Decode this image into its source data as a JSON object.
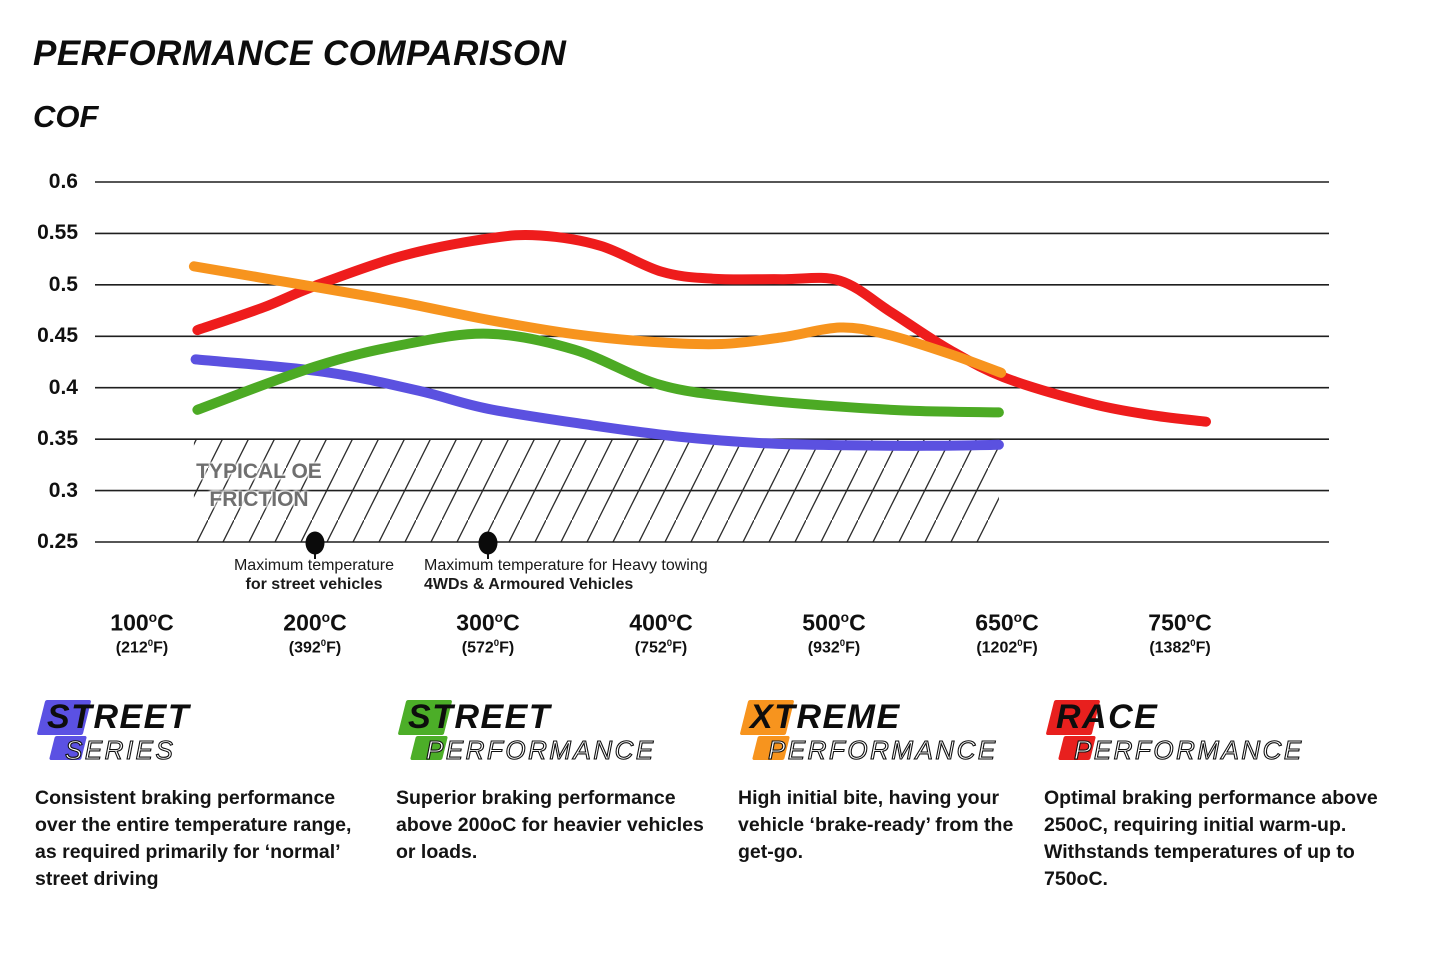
{
  "chart_data": {
    "type": "line",
    "title": "PERFORMANCE COMPARISON",
    "xlabel": "",
    "ylabel": "COF",
    "ylim": [
      0.25,
      0.6
    ],
    "yticks": [
      0.6,
      0.55,
      0.5,
      0.45,
      0.4,
      0.35,
      0.3,
      0.25
    ],
    "grid": true,
    "legend_position": "bottom",
    "x_categories": [
      {
        "c": "100",
        "f": "212"
      },
      {
        "c": "200",
        "f": "392"
      },
      {
        "c": "300",
        "f": "572"
      },
      {
        "c": "400",
        "f": "752"
      },
      {
        "c": "500",
        "f": "932"
      },
      {
        "c": "650",
        "f": "1202"
      },
      {
        "c": "750",
        "f": "1382"
      }
    ],
    "x_label": {
      "sup_c": "o",
      "unit_c": "C",
      "sup_f": "0",
      "unit_f": "F"
    },
    "series": [
      {
        "name": "Race Performance",
        "color": "#ee1c1c",
        "points": [
          [
            132,
            0.456
          ],
          [
            170,
            0.478
          ],
          [
            200,
            0.499
          ],
          [
            250,
            0.528
          ],
          [
            300,
            0.545
          ],
          [
            330,
            0.548
          ],
          [
            365,
            0.538
          ],
          [
            400,
            0.513
          ],
          [
            430,
            0.506
          ],
          [
            470,
            0.5055
          ],
          [
            505,
            0.504
          ],
          [
            550,
            0.473
          ],
          [
            600,
            0.437
          ],
          [
            650,
            0.409
          ],
          [
            700,
            0.384
          ],
          [
            735,
            0.373
          ],
          [
            765,
            0.367
          ]
        ]
      },
      {
        "name": "Xtreme Performance",
        "color": "#f7941e",
        "points": [
          [
            130,
            0.518
          ],
          [
            200,
            0.498
          ],
          [
            250,
            0.483
          ],
          [
            300,
            0.466
          ],
          [
            350,
            0.452
          ],
          [
            395,
            0.4445
          ],
          [
            435,
            0.4425
          ],
          [
            470,
            0.449
          ],
          [
            505,
            0.4585
          ],
          [
            545,
            0.452
          ],
          [
            600,
            0.433
          ],
          [
            645,
            0.4145
          ]
        ]
      },
      {
        "name": "Street Series",
        "color": "#5b51e0",
        "points": [
          [
            131,
            0.4275
          ],
          [
            205,
            0.4155
          ],
          [
            260,
            0.397
          ],
          [
            300,
            0.3795
          ],
          [
            360,
            0.3635
          ],
          [
            410,
            0.3525
          ],
          [
            460,
            0.346
          ],
          [
            510,
            0.344
          ],
          [
            580,
            0.3435
          ],
          [
            643,
            0.3445
          ]
        ]
      },
      {
        "name": "Street Performance",
        "color": "#4caa24",
        "points": [
          [
            132,
            0.3785
          ],
          [
            200,
            0.4205
          ],
          [
            250,
            0.4415
          ],
          [
            300,
            0.4525
          ],
          [
            350,
            0.437
          ],
          [
            400,
            0.4025
          ],
          [
            450,
            0.3895
          ],
          [
            500,
            0.382
          ],
          [
            570,
            0.3775
          ],
          [
            643,
            0.376
          ]
        ]
      }
    ],
    "oe_band": {
      "label": [
        "TYPICAL OE",
        "FRICTION"
      ],
      "from_cof": 0.25,
      "to_cof": 0.35,
      "from_temp": 130,
      "to_temp": 643,
      "label_color": "#6f6f6f"
    },
    "markers": [
      {
        "temp": 200,
        "cof": 0.25,
        "label_line1": "Maximum temperature",
        "label_line2": "for street vehicles"
      },
      {
        "temp": 300,
        "cof": 0.25,
        "label_line1": "Maximum temperature for Heavy towing",
        "label_line2": "4WDs & Armoured Vehicles"
      }
    ]
  },
  "legend": {
    "items": [
      {
        "word1": "STREET",
        "word2": "SERIES",
        "color": "#5b51e3",
        "description": "Consistent braking performance over the entire temperature range, as required primarily for ‘normal’ street driving"
      },
      {
        "word1": "STREET",
        "word2": "PERFORMANCE",
        "color": "#4cae28",
        "description": "Superior braking performance above 200oC for heavier vehicles or loads."
      },
      {
        "word1": "XTREME",
        "word2": "PERFORMANCE",
        "color": "#f7941e",
        "description": "High initial bite, having your vehicle ‘brake-ready’ from the get-go."
      },
      {
        "word1": "RACE",
        "word2": "PERFORMANCE",
        "color": "#e8201e",
        "description": "Optimal braking performance above 250oC, requiring initial warm-up. Withstands temperatures of up to 750oC."
      }
    ]
  }
}
